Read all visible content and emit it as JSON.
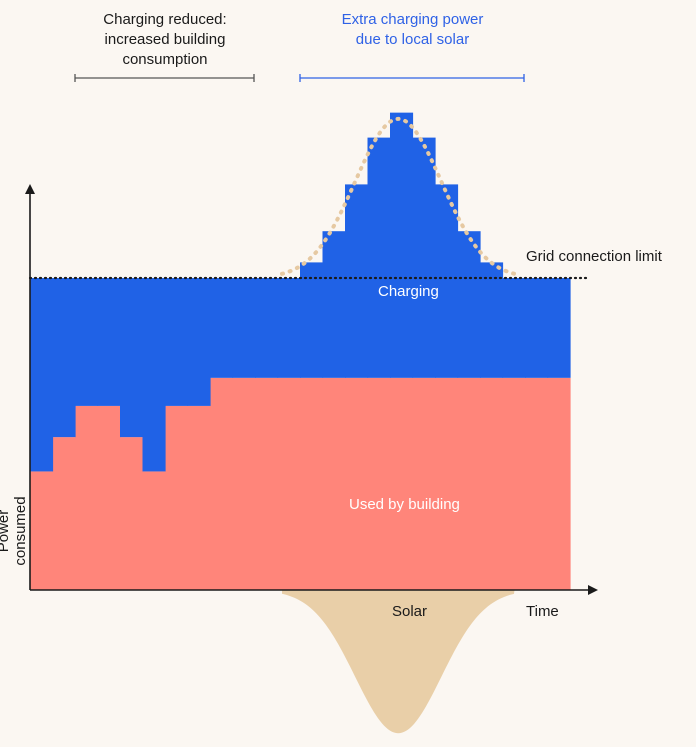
{
  "annotations": {
    "reduced": "Charging reduced:\nincreased building\nconsumption",
    "extra": "Extra charging power\ndue to local solar"
  },
  "labels": {
    "grid_limit": "Grid connection limit",
    "charging": "Charging",
    "building": "Used by building",
    "solar": "Solar",
    "x_axis": "Time",
    "y_axis": "Power consumed"
  },
  "colors": {
    "charging": "#2062e6",
    "building": "#ff857a",
    "solar": "#e9cfa8",
    "solar_limit_dots": "#e6c9a2",
    "annotation_accent": "#2f62e6",
    "axis": "#1a1a1a",
    "background": "#fbf7f2"
  },
  "chart_data": {
    "type": "area",
    "xlabel": "Time",
    "ylabel": "Power consumed",
    "grid": false,
    "series": [
      {
        "name": "Used by building",
        "values": [
          0.38,
          0.49,
          0.59,
          0.59,
          0.49,
          0.38,
          0.59,
          0.59,
          0.68,
          0.68,
          0.68,
          0.68,
          0.68,
          0.68,
          0.68,
          0.68,
          0.68,
          0.68,
          0.68,
          0.68,
          0.68,
          0.68,
          0.68,
          0.68
        ]
      },
      {
        "name": "Charging",
        "values": [
          0.62,
          0.51,
          0.41,
          0.41,
          0.51,
          0.62,
          0.41,
          0.41,
          0.32,
          0.32,
          0.32,
          0.32,
          0.37,
          0.47,
          0.62,
          0.77,
          0.85,
          0.77,
          0.62,
          0.47,
          0.37,
          0.32,
          0.32,
          0.32
        ]
      },
      {
        "name": "Solar",
        "values": [
          0,
          0,
          0,
          0,
          0,
          0,
          0,
          0,
          0,
          0,
          0,
          0,
          0.05,
          0.2,
          0.5,
          0.8,
          0.85,
          0.8,
          0.5,
          0.2,
          0.05,
          0,
          0,
          0
        ]
      }
    ],
    "grid_limit": 1.0,
    "ylim": [
      -0.85,
      1.5
    ]
  }
}
